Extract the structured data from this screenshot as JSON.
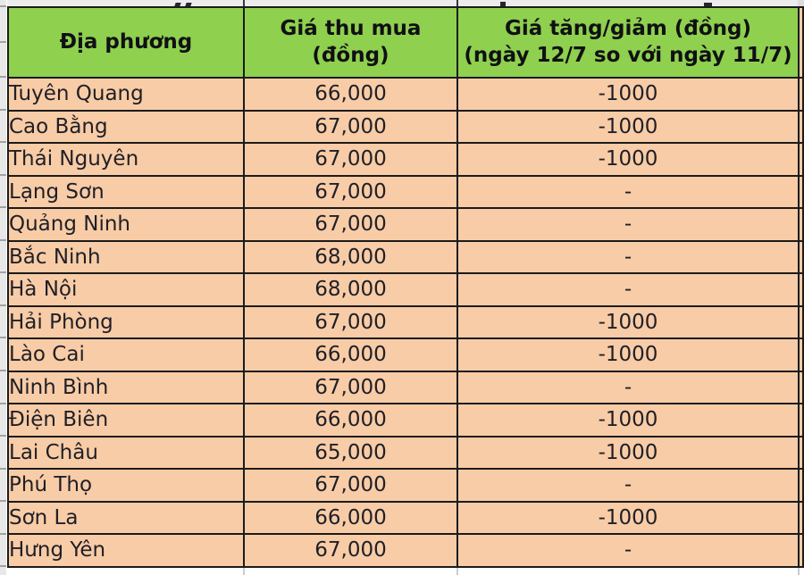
{
  "table": {
    "headers": {
      "col1": "Địa phương",
      "col2_line1": "Giá thu mua",
      "col2_line2": "(đồng)",
      "col3_line1": "Giá tăng/giảm (đồng)",
      "col3_line2": "(ngày 12/7 so với ngày 11/7)"
    },
    "rows": [
      {
        "province": "Tuyên Quang",
        "price": "66,000",
        "change": "-1000"
      },
      {
        "province": "Cao Bằng",
        "price": "67,000",
        "change": "-1000"
      },
      {
        "province": "Thái Nguyên",
        "price": "67,000",
        "change": "-1000"
      },
      {
        "province": "Lạng Sơn",
        "price": "67,000",
        "change": "-"
      },
      {
        "province": "Quảng Ninh",
        "price": "67,000",
        "change": "-"
      },
      {
        "province": "Bắc Ninh",
        "price": "68,000",
        "change": "-"
      },
      {
        "province": "Hà Nội",
        "price": "68,000",
        "change": "-"
      },
      {
        "province": "Hải Phòng",
        "price": "67,000",
        "change": "-1000"
      },
      {
        "province": "Lào Cai",
        "price": "66,000",
        "change": "-1000"
      },
      {
        "province": "Ninh Bình",
        "price": "67,000",
        "change": "-"
      },
      {
        "province": "Điện Biên",
        "price": "66,000",
        "change": "-1000"
      },
      {
        "province": "Lai Châu",
        "price": "65,000",
        "change": "-1000"
      },
      {
        "province": "Phú Thọ",
        "price": "67,000",
        "change": "-"
      },
      {
        "province": "Sơn La",
        "price": "66,000",
        "change": "-1000"
      },
      {
        "province": "Hưng Yên",
        "price": "67,000",
        "change": "-"
      }
    ]
  },
  "colors": {
    "header_green": "#8fd04f",
    "row_peach": "#f8cca6",
    "border_black": "#1b1b1b",
    "gutter_gray": "#e8e8e8",
    "text_dark": "#1f1f27"
  }
}
